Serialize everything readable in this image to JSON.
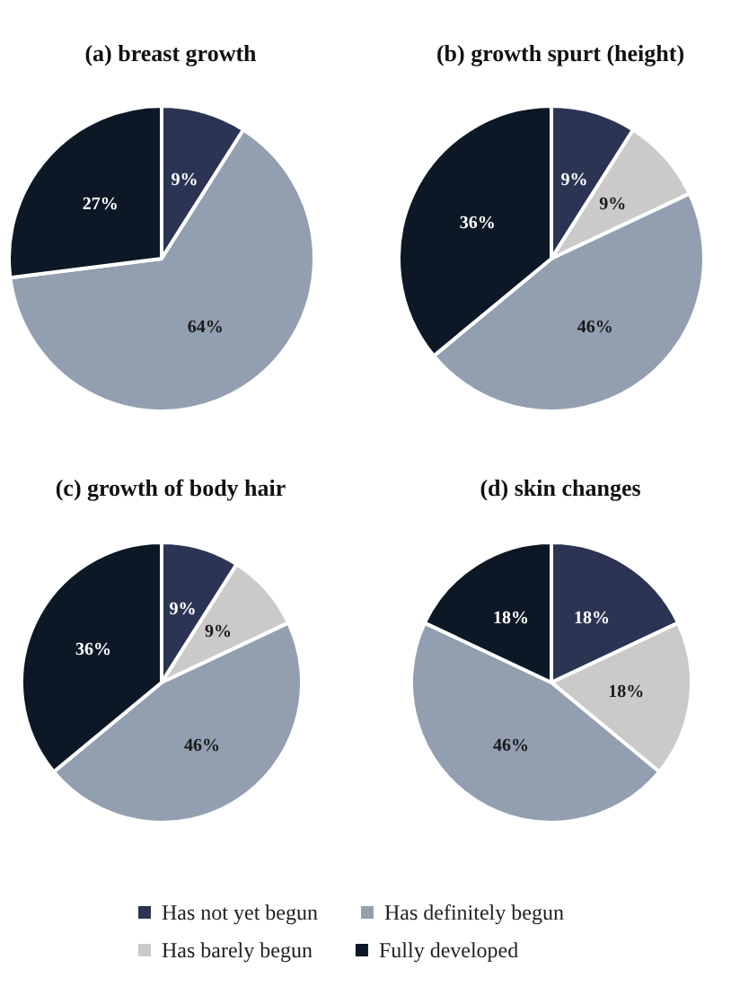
{
  "chart_data": [
    {
      "type": "pie",
      "title": "(a) breast growth",
      "categories": [
        null,
        null,
        null
      ],
      "values": [
        9,
        64,
        27
      ],
      "value_labels": [
        "9%",
        "64%",
        "27%"
      ],
      "colors": [
        "#2b3553",
        "#919fb1",
        "#0d1826"
      ],
      "legend": false
    },
    {
      "type": "pie",
      "title": "(b) growth spurt (height)",
      "categories": [
        null,
        null,
        null,
        null
      ],
      "values": [
        9,
        9,
        46,
        36
      ],
      "value_labels": [
        "9%",
        "9%",
        "46%",
        "36%"
      ],
      "colors": [
        "#2b3553",
        "#cacaca",
        "#919fb1",
        "#0d1826"
      ],
      "legend": false
    },
    {
      "type": "pie",
      "title": "(c) growth of body hair",
      "categories": [
        null,
        null,
        null,
        null
      ],
      "values": [
        9,
        9,
        46,
        36
      ],
      "value_labels": [
        "9%",
        "9%",
        "46%",
        "36%"
      ],
      "colors": [
        "#2b3553",
        "#cacaca",
        "#919fb1",
        "#0d1826"
      ],
      "legend": false
    },
    {
      "type": "pie",
      "title": "(d) skin changes",
      "categories": [
        "Has not yet begun",
        "Has barely begun",
        "Has definitely begun",
        "Fully developed"
      ],
      "values": [
        18,
        18,
        46,
        18
      ],
      "value_labels": [
        "18%",
        "18%",
        "46%",
        "18%"
      ],
      "colors": [
        "#2b3553",
        "#cacaca",
        "#919fb1",
        "#0d1826"
      ],
      "legend": "bottom"
    }
  ]
}
